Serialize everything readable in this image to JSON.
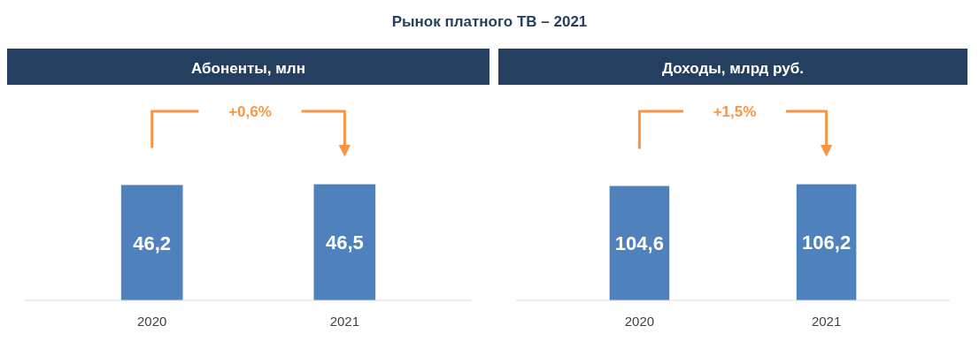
{
  "chart_data": [
    {
      "type": "bar",
      "title": "Рынок платного ТВ – 2021",
      "subtitle": "Абоненты, млн",
      "categories": [
        "2020",
        "2021"
      ],
      "values": [
        46.2,
        46.5
      ],
      "color": "#4f81bd",
      "data_labels": true,
      "value_labels": [
        "46,2",
        "46,5"
      ],
      "annotations": [
        "+0,6%"
      ],
      "tick_labels": "x"
    },
    {
      "type": "bar",
      "subtitle": "Доходы, млрд руб.",
      "categories": [
        "2020",
        "2021"
      ],
      "values": [
        104.6,
        106.2
      ],
      "color": "#4f81bd",
      "data_labels": true,
      "value_labels": [
        "104,6",
        "106,2"
      ],
      "annotations": [
        "+1,5%"
      ],
      "tick_labels": "x"
    }
  ]
}
